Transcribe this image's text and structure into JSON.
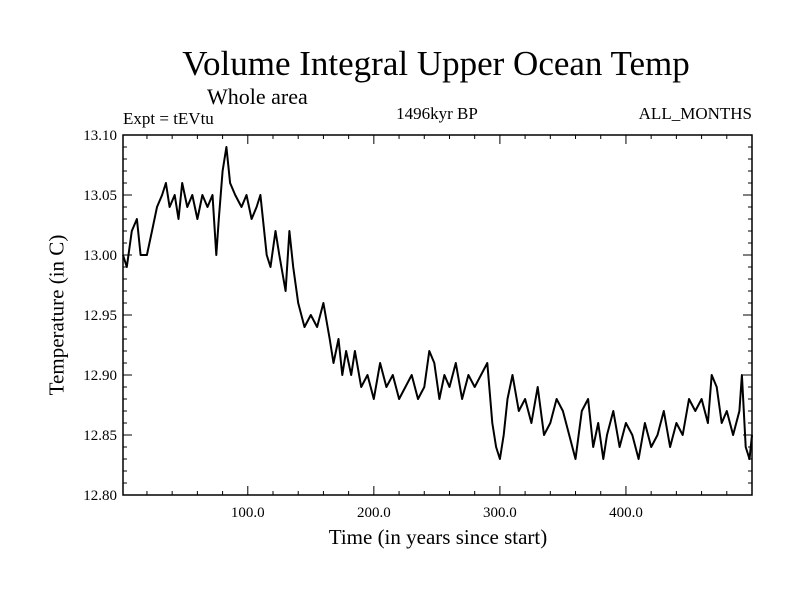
{
  "chart_data": {
    "type": "line",
    "title": "Volume Integral Upper Ocean Temp",
    "subtitle": "Whole area",
    "experiment_label": "Expt = tEVtu",
    "center_label": "1496kyr BP",
    "right_label": "ALL_MONTHS",
    "xlabel": "Time (in years since start)",
    "ylabel": "Temperature (in C)",
    "xlim": [
      1,
      500
    ],
    "ylim": [
      12.8,
      13.1
    ],
    "x_ticks": [
      100,
      200,
      300,
      400
    ],
    "x_tick_labels": [
      "100.0",
      "200.0",
      "300.0",
      "400.0"
    ],
    "y_ticks": [
      12.8,
      12.85,
      12.9,
      12.95,
      13.0,
      13.05,
      13.1
    ],
    "y_tick_labels": [
      "12.80",
      "12.85",
      "12.90",
      "12.95",
      "13.00",
      "13.05",
      "13.10"
    ],
    "grid": false,
    "series": [
      {
        "name": "tEVtu",
        "x": [
          1,
          4,
          8,
          12,
          15,
          20,
          24,
          28,
          32,
          35,
          38,
          42,
          45,
          48,
          52,
          56,
          60,
          64,
          68,
          72,
          75,
          77,
          80,
          83,
          86,
          90,
          95,
          99,
          103,
          107,
          110,
          115,
          118,
          122,
          125,
          130,
          133,
          136,
          140,
          145,
          150,
          155,
          160,
          165,
          168,
          172,
          175,
          178,
          182,
          185,
          190,
          195,
          200,
          205,
          210,
          215,
          220,
          225,
          230,
          235,
          240,
          244,
          248,
          252,
          256,
          260,
          265,
          270,
          275,
          280,
          285,
          290,
          294,
          297,
          300,
          303,
          306,
          310,
          315,
          320,
          325,
          330,
          335,
          340,
          345,
          350,
          355,
          360,
          365,
          370,
          374,
          378,
          382,
          385,
          390,
          395,
          400,
          405,
          410,
          415,
          420,
          425,
          430,
          435,
          440,
          445,
          450,
          455,
          460,
          465,
          468,
          472,
          476,
          480,
          485,
          490,
          492,
          495,
          498,
          500
        ],
        "values": [
          13.0,
          12.99,
          13.02,
          13.03,
          13.0,
          13.0,
          13.02,
          13.04,
          13.05,
          13.06,
          13.04,
          13.05,
          13.03,
          13.06,
          13.04,
          13.05,
          13.03,
          13.05,
          13.04,
          13.05,
          13.0,
          13.03,
          13.07,
          13.09,
          13.06,
          13.05,
          13.04,
          13.05,
          13.03,
          13.04,
          13.05,
          13.0,
          12.99,
          13.02,
          13.0,
          12.97,
          13.02,
          12.99,
          12.96,
          12.94,
          12.95,
          12.94,
          12.96,
          12.93,
          12.91,
          12.93,
          12.9,
          12.92,
          12.9,
          12.92,
          12.89,
          12.9,
          12.88,
          12.91,
          12.89,
          12.9,
          12.88,
          12.89,
          12.9,
          12.88,
          12.89,
          12.92,
          12.91,
          12.88,
          12.9,
          12.89,
          12.91,
          12.88,
          12.9,
          12.89,
          12.9,
          12.91,
          12.86,
          12.84,
          12.83,
          12.85,
          12.88,
          12.9,
          12.87,
          12.88,
          12.86,
          12.89,
          12.85,
          12.86,
          12.88,
          12.87,
          12.85,
          12.83,
          12.87,
          12.88,
          12.84,
          12.86,
          12.83,
          12.85,
          12.87,
          12.84,
          12.86,
          12.85,
          12.83,
          12.86,
          12.84,
          12.85,
          12.87,
          12.84,
          12.86,
          12.85,
          12.88,
          12.87,
          12.88,
          12.86,
          12.9,
          12.89,
          12.86,
          12.87,
          12.85,
          12.87,
          12.9,
          12.84,
          12.83,
          12.85
        ]
      }
    ]
  }
}
